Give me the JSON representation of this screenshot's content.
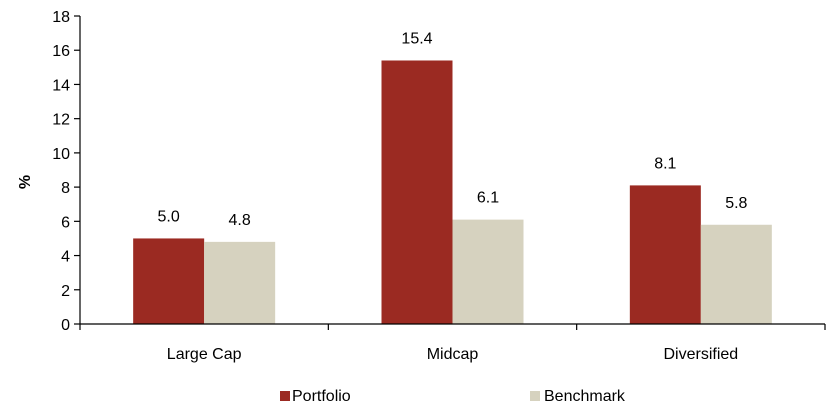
{
  "chart_data": {
    "type": "bar",
    "categories": [
      "Large Cap",
      "Midcap",
      "Diversified"
    ],
    "series": [
      {
        "name": "Portfolio",
        "values": [
          5.0,
          15.4,
          8.1
        ],
        "color": "#9B2A22"
      },
      {
        "name": "Benchmark",
        "values": [
          4.8,
          6.1,
          5.8
        ],
        "color": "#D6D2BF"
      }
    ],
    "data_labels": [
      [
        "5.0",
        "15.4",
        "8.1"
      ],
      [
        "4.8",
        "6.1",
        "5.8"
      ]
    ],
    "ylabel": "%",
    "ylim": [
      0,
      18
    ],
    "yticks": [
      "0",
      "2",
      "4",
      "6",
      "8",
      "10",
      "12",
      "14",
      "16",
      "18"
    ],
    "grid": false,
    "legend_position": "bottom"
  }
}
